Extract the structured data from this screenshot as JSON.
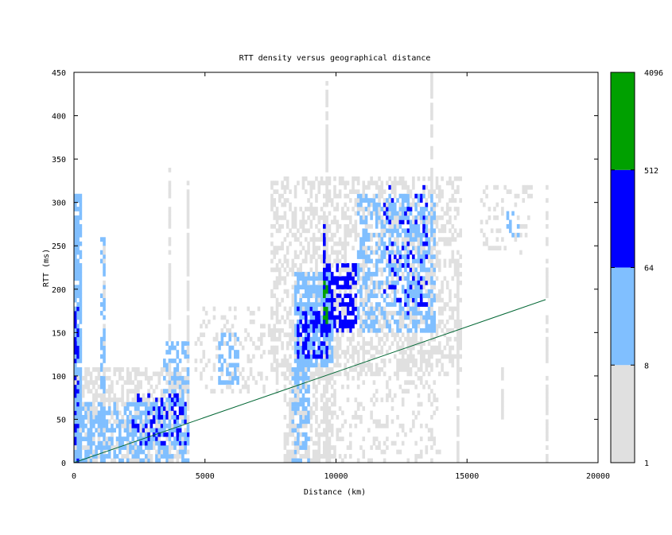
{
  "chart_data": {
    "type": "heatmap",
    "title": "RTT density versus geographical distance",
    "xlabel": "Distance (km)",
    "ylabel": "RTT (ms)",
    "xlim": [
      0,
      20000
    ],
    "ylim": [
      0,
      450
    ],
    "xticks": [
      0,
      5000,
      10000,
      15000,
      20000
    ],
    "yticks": [
      0,
      50,
      100,
      150,
      200,
      250,
      300,
      350,
      400,
      450
    ],
    "grid": false,
    "colorbar": {
      "scale": "log",
      "ticks": [
        1,
        8,
        64,
        512,
        4096
      ],
      "bands": [
        {
          "from": 1,
          "to": 8,
          "color": "#e0e0e0"
        },
        {
          "from": 8,
          "to": 64,
          "color": "#80bfff"
        },
        {
          "from": 64,
          "to": 512,
          "color": "#0000ff"
        },
        {
          "from": 512,
          "to": 4096,
          "color": "#00a000"
        }
      ]
    },
    "reference_line": {
      "x": [
        0,
        18000
      ],
      "y": [
        0,
        188
      ],
      "color": "#006633"
    },
    "bin_size": {
      "x": 100,
      "y": 5
    },
    "clusters": [
      {
        "x": [
          0,
          300
        ],
        "y": [
          0,
          310
        ],
        "level": 2,
        "density": 0.85
      },
      {
        "x": [
          0,
          200
        ],
        "y": [
          0,
          180
        ],
        "level": 3,
        "density": 0.45
      },
      {
        "x": [
          0,
          4400
        ],
        "y": [
          0,
          110
        ],
        "level": 1,
        "density": 0.55
      },
      {
        "x": [
          300,
          4400
        ],
        "y": [
          0,
          70
        ],
        "level": 2,
        "density": 0.5
      },
      {
        "x": [
          2200,
          4400
        ],
        "y": [
          20,
          80
        ],
        "level": 3,
        "density": 0.25
      },
      {
        "x": [
          1000,
          1200
        ],
        "y": [
          0,
          260
        ],
        "level": 2,
        "density": 0.5
      },
      {
        "x": [
          3400,
          4400
        ],
        "y": [
          60,
          140
        ],
        "level": 2,
        "density": 0.45
      },
      {
        "x": [
          5500,
          6300
        ],
        "y": [
          90,
          150
        ],
        "level": 2,
        "density": 0.5
      },
      {
        "x": [
          4600,
          7800
        ],
        "y": [
          80,
          180
        ],
        "level": 1,
        "density": 0.25
      },
      {
        "x": [
          8400,
          9900
        ],
        "y": [
          110,
          220
        ],
        "level": 2,
        "density": 0.75
      },
      {
        "x": [
          8500,
          9700
        ],
        "y": [
          120,
          180
        ],
        "level": 3,
        "density": 0.5
      },
      {
        "x": [
          9500,
          9700
        ],
        "y": [
          160,
          210
        ],
        "level": 4,
        "density": 0.6
      },
      {
        "x": [
          9600,
          10800
        ],
        "y": [
          150,
          230
        ],
        "level": 3,
        "density": 0.55
      },
      {
        "x": [
          8000,
          10000
        ],
        "y": [
          0,
          110
        ],
        "level": 1,
        "density": 0.55
      },
      {
        "x": [
          8300,
          9000
        ],
        "y": [
          0,
          120
        ],
        "level": 2,
        "density": 0.45
      },
      {
        "x": [
          7500,
          14800
        ],
        "y": [
          100,
          330
        ],
        "level": 1,
        "density": 0.45
      },
      {
        "x": [
          10800,
          13800
        ],
        "y": [
          150,
          310
        ],
        "level": 2,
        "density": 0.45
      },
      {
        "x": [
          11800,
          13500
        ],
        "y": [
          170,
          320
        ],
        "level": 3,
        "density": 0.12
      },
      {
        "x": [
          10000,
          14000
        ],
        "y": [
          0,
          140
        ],
        "level": 1,
        "density": 0.2
      },
      {
        "x": [
          15500,
          17500
        ],
        "y": [
          240,
          320
        ],
        "level": 1,
        "density": 0.2
      },
      {
        "x": [
          16500,
          17000
        ],
        "y": [
          260,
          290
        ],
        "level": 2,
        "density": 0.3
      },
      {
        "x": [
          18000,
          18100
        ],
        "y": [
          0,
          320
        ],
        "level": 1,
        "density": 0.6
      }
    ],
    "columns": [
      {
        "x": 9600,
        "y": [
          0,
          440
        ],
        "level": 1
      },
      {
        "x": 9500,
        "y": [
          150,
          275
        ],
        "level": 3
      },
      {
        "x": 13600,
        "y": [
          120,
          450
        ],
        "level": 1
      },
      {
        "x": 1100,
        "y": [
          0,
          260
        ],
        "level": 1
      },
      {
        "x": 3600,
        "y": [
          0,
          340
        ],
        "level": 1
      },
      {
        "x": 4300,
        "y": [
          0,
          330
        ],
        "level": 1
      },
      {
        "x": 14600,
        "y": [
          0,
          240
        ],
        "level": 1
      },
      {
        "x": 16300,
        "y": [
          50,
          110
        ],
        "level": 1
      }
    ]
  }
}
